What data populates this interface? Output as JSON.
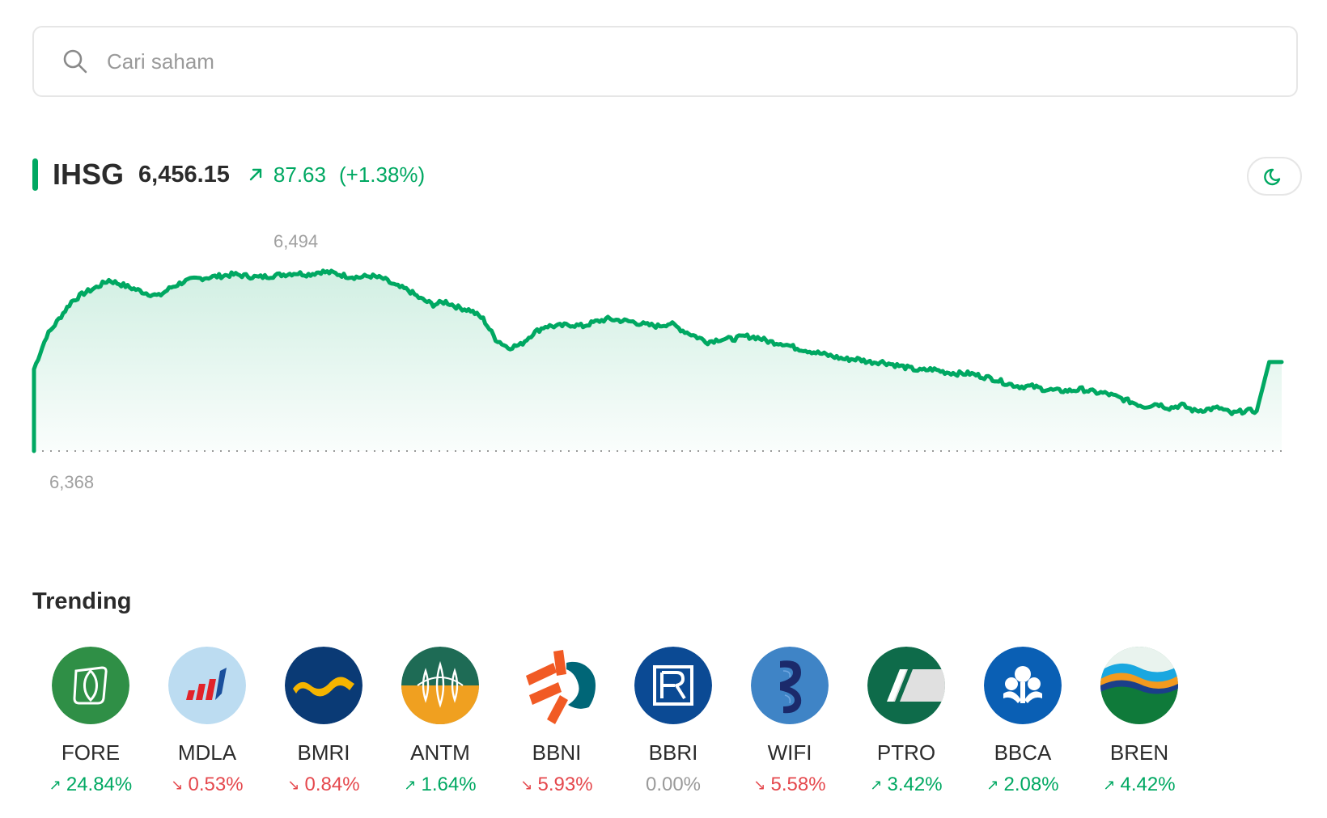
{
  "search": {
    "placeholder": "Cari saham",
    "icon": "search-icon"
  },
  "index": {
    "name": "IHSG",
    "value": "6,456.15",
    "change": "87.63",
    "change_pct": "(+1.38%)",
    "direction": "up",
    "accent_color": "#00a862"
  },
  "theme_toggle": {
    "icon": "moon-icon"
  },
  "chart_data": {
    "type": "area",
    "high_label": "6,494",
    "low_label": "6,368",
    "ylim": [
      6368,
      6502
    ],
    "color": "#00a862",
    "values": [
      6425,
      6448,
      6460,
      6472,
      6478,
      6482,
      6487,
      6484,
      6481,
      6478,
      6476,
      6482,
      6486,
      6488,
      6489,
      6490,
      6491,
      6490,
      6489,
      6490,
      6491,
      6492,
      6491,
      6493,
      6492,
      6490,
      6489,
      6490,
      6488,
      6483,
      6480,
      6474,
      6470,
      6472,
      6468,
      6466,
      6460,
      6446,
      6440,
      6442,
      6450,
      6455,
      6455,
      6456,
      6455,
      6458,
      6460,
      6459,
      6458,
      6456,
      6455,
      6457,
      6452,
      6448,
      6444,
      6446,
      6446,
      6448,
      6447,
      6444,
      6443,
      6440,
      6438,
      6436,
      6434,
      6432,
      6432,
      6430,
      6430,
      6428,
      6426,
      6424,
      6425,
      6423,
      6422,
      6422,
      6420,
      6418,
      6415,
      6413,
      6413,
      6411,
      6410,
      6410,
      6411,
      6409,
      6408,
      6405,
      6402,
      6399,
      6401,
      6398,
      6400,
      6396,
      6397,
      6398,
      6394,
      6396,
      6396,
      6430,
      6430
    ]
  },
  "trending": {
    "title": "Trending",
    "stocks": [
      {
        "ticker": "FORE",
        "change": "24.84%",
        "dir": "up",
        "arrow": "↗",
        "icon": "fore-logo-icon"
      },
      {
        "ticker": "MDLA",
        "change": "0.53%",
        "dir": "down",
        "arrow": "↘",
        "icon": "mdla-logo-icon"
      },
      {
        "ticker": "BMRI",
        "change": "0.84%",
        "dir": "down",
        "arrow": "↘",
        "icon": "bmri-logo-icon"
      },
      {
        "ticker": "ANTM",
        "change": "1.64%",
        "dir": "up",
        "arrow": "↗",
        "icon": "antm-logo-icon"
      },
      {
        "ticker": "BBNI",
        "change": "5.93%",
        "dir": "down",
        "arrow": "↘",
        "icon": "bbni-logo-icon"
      },
      {
        "ticker": "BBRI",
        "change": "0.00%",
        "dir": "flat",
        "arrow": "",
        "icon": "bbri-logo-icon"
      },
      {
        "ticker": "WIFI",
        "change": "5.58%",
        "dir": "down",
        "arrow": "↘",
        "icon": "wifi-logo-icon"
      },
      {
        "ticker": "PTRO",
        "change": "3.42%",
        "dir": "up",
        "arrow": "↗",
        "icon": "ptro-logo-icon"
      },
      {
        "ticker": "BBCA",
        "change": "2.08%",
        "dir": "up",
        "arrow": "↗",
        "icon": "bbca-logo-icon"
      },
      {
        "ticker": "BREN",
        "change": "4.42%",
        "dir": "up",
        "arrow": "↗",
        "icon": "bren-logo-icon"
      }
    ]
  }
}
